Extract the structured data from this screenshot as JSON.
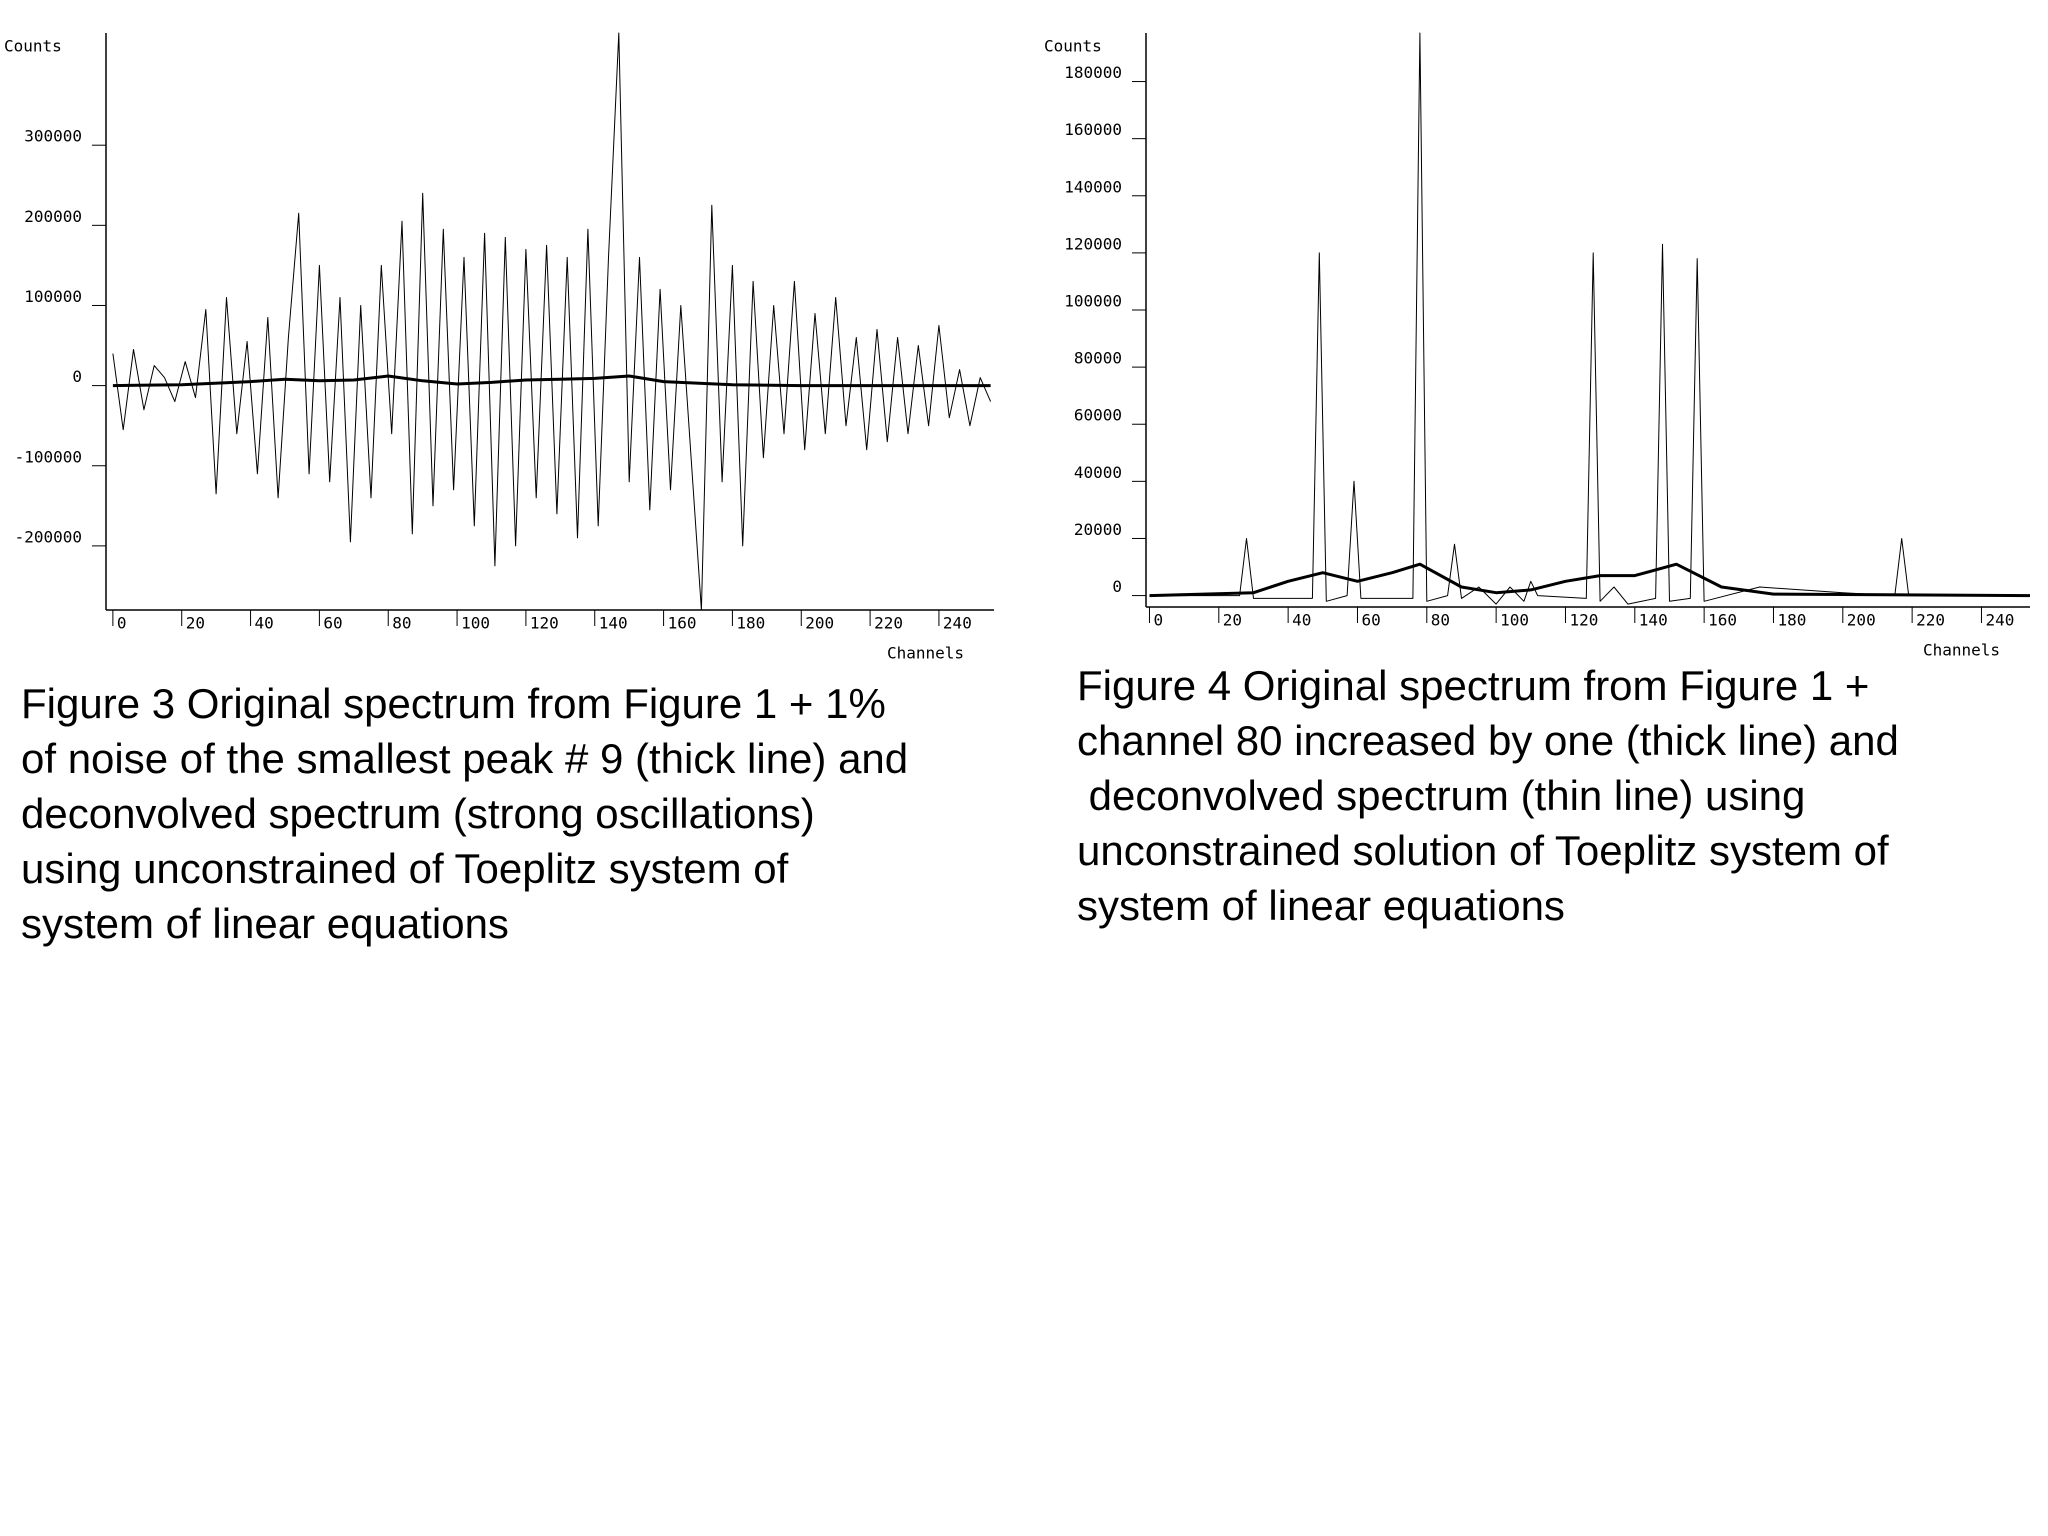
{
  "chart_data": [
    {
      "type": "line",
      "ylabel": "Counts",
      "xlabel": "Channels",
      "xlim": [
        -2,
        256
      ],
      "ylim": [
        -280000,
        440000
      ],
      "xticks": [
        0,
        20,
        40,
        60,
        80,
        100,
        120,
        140,
        160,
        180,
        200,
        220,
        240
      ],
      "yticks": [
        -200000,
        -100000,
        0,
        100000,
        200000,
        300000
      ],
      "series": [
        {
          "color": "#000000",
          "line_width": 1,
          "x": [
            0,
            3,
            6,
            9,
            12,
            15,
            18,
            21,
            24,
            27,
            30,
            33,
            36,
            39,
            42,
            45,
            48,
            51,
            54,
            57,
            60,
            63,
            66,
            69,
            72,
            75,
            78,
            81,
            84,
            87,
            90,
            93,
            96,
            99,
            102,
            105,
            108,
            111,
            114,
            117,
            120,
            123,
            126,
            129,
            132,
            135,
            138,
            141,
            144,
            147,
            150,
            153,
            156,
            159,
            162,
            165,
            168,
            171,
            174,
            177,
            180,
            183,
            186,
            189,
            192,
            195,
            198,
            201,
            204,
            207,
            210,
            213,
            216,
            219,
            222,
            225,
            228,
            231,
            234,
            237,
            240,
            243,
            246,
            249,
            252,
            255
          ],
          "values": [
            40000,
            -55000,
            45000,
            -30000,
            25000,
            10000,
            -20000,
            30000,
            -15000,
            95000,
            -135000,
            110000,
            -60000,
            55000,
            -110000,
            85000,
            -140000,
            60000,
            215000,
            -110000,
            150000,
            -120000,
            110000,
            -195000,
            100000,
            -140000,
            150000,
            -60000,
            205000,
            -185000,
            240000,
            -150000,
            195000,
            -130000,
            160000,
            -175000,
            190000,
            -225000,
            185000,
            -200000,
            170000,
            -140000,
            175000,
            -160000,
            160000,
            -190000,
            195000,
            -175000,
            160000,
            440000,
            -120000,
            160000,
            -155000,
            120000,
            -130000,
            100000,
            -90000,
            -280000,
            225000,
            -120000,
            150000,
            -200000,
            130000,
            -90000,
            100000,
            -60000,
            130000,
            -80000,
            90000,
            -60000,
            110000,
            -50000,
            60000,
            -80000,
            70000,
            -70000,
            60000,
            -60000,
            50000,
            -50000,
            75000,
            -40000,
            20000,
            -50000,
            10000,
            -20000
          ]
        },
        {
          "color": "#000000",
          "line_width": 3,
          "x": [
            0,
            20,
            40,
            50,
            60,
            70,
            80,
            90,
            100,
            110,
            120,
            130,
            140,
            150,
            160,
            180,
            200,
            220,
            255
          ],
          "values": [
            0,
            1000,
            5000,
            8000,
            6000,
            7000,
            12000,
            6000,
            2000,
            4000,
            7000,
            8000,
            9000,
            12000,
            5000,
            1000,
            0,
            0,
            0
          ]
        }
      ],
      "caption": [
        "Figure 3 Original spectrum from Figure 1 + 1%",
        "of noise of the smallest peak # 9 (thick line) and",
        "deconvolved spectrum (strong oscillations)",
        "using unconstrained of Toeplitz system of",
        "system of linear equations"
      ]
    },
    {
      "type": "line",
      "ylabel": "Counts",
      "xlabel": "Channels",
      "xlim": [
        -1,
        254
      ],
      "ylim": [
        -4000,
        197000
      ],
      "xticks": [
        0,
        20,
        40,
        60,
        80,
        100,
        120,
        140,
        160,
        180,
        200,
        220,
        240
      ],
      "yticks": [
        0,
        20000,
        40000,
        60000,
        80000,
        100000,
        120000,
        140000,
        160000,
        180000
      ],
      "series": [
        {
          "color": "#000000",
          "line_width": 1,
          "x": [
            0,
            26,
            28,
            30,
            47,
            49,
            51,
            57,
            59,
            61,
            76,
            78,
            80,
            86,
            88,
            90,
            95,
            100,
            104,
            108,
            110,
            112,
            126,
            128,
            130,
            134,
            138,
            146,
            148,
            150,
            156,
            158,
            160,
            176,
            200,
            215,
            217,
            219,
            255
          ],
          "values": [
            0,
            0,
            20000,
            -1000,
            -1000,
            120000,
            -2000,
            0,
            40000,
            -1000,
            -1000,
            197000,
            -2000,
            0,
            18000,
            -1000,
            3000,
            -3000,
            3000,
            -2000,
            5000,
            0,
            -1000,
            120000,
            -2000,
            3000,
            -3000,
            -1000,
            123000,
            -2000,
            -1000,
            118000,
            -2000,
            3000,
            1000,
            0,
            20000,
            0,
            0
          ]
        },
        {
          "color": "#000000",
          "line_width": 3,
          "x": [
            0,
            30,
            40,
            50,
            60,
            70,
            78,
            90,
            100,
            110,
            120,
            130,
            140,
            152,
            165,
            180,
            255
          ],
          "values": [
            0,
            1000,
            5000,
            8000,
            5000,
            8000,
            11000,
            3000,
            1000,
            2000,
            5000,
            7000,
            7000,
            11000,
            3000,
            500,
            0
          ]
        }
      ],
      "caption": [
        "Figure 4 Original spectrum from Figure 1 +",
        "channel 80 increased by one (thick line) and",
        " deconvolved spectrum (thin line) using",
        "unconstrained solution of Toeplitz system of",
        "system of linear equations"
      ]
    }
  ]
}
